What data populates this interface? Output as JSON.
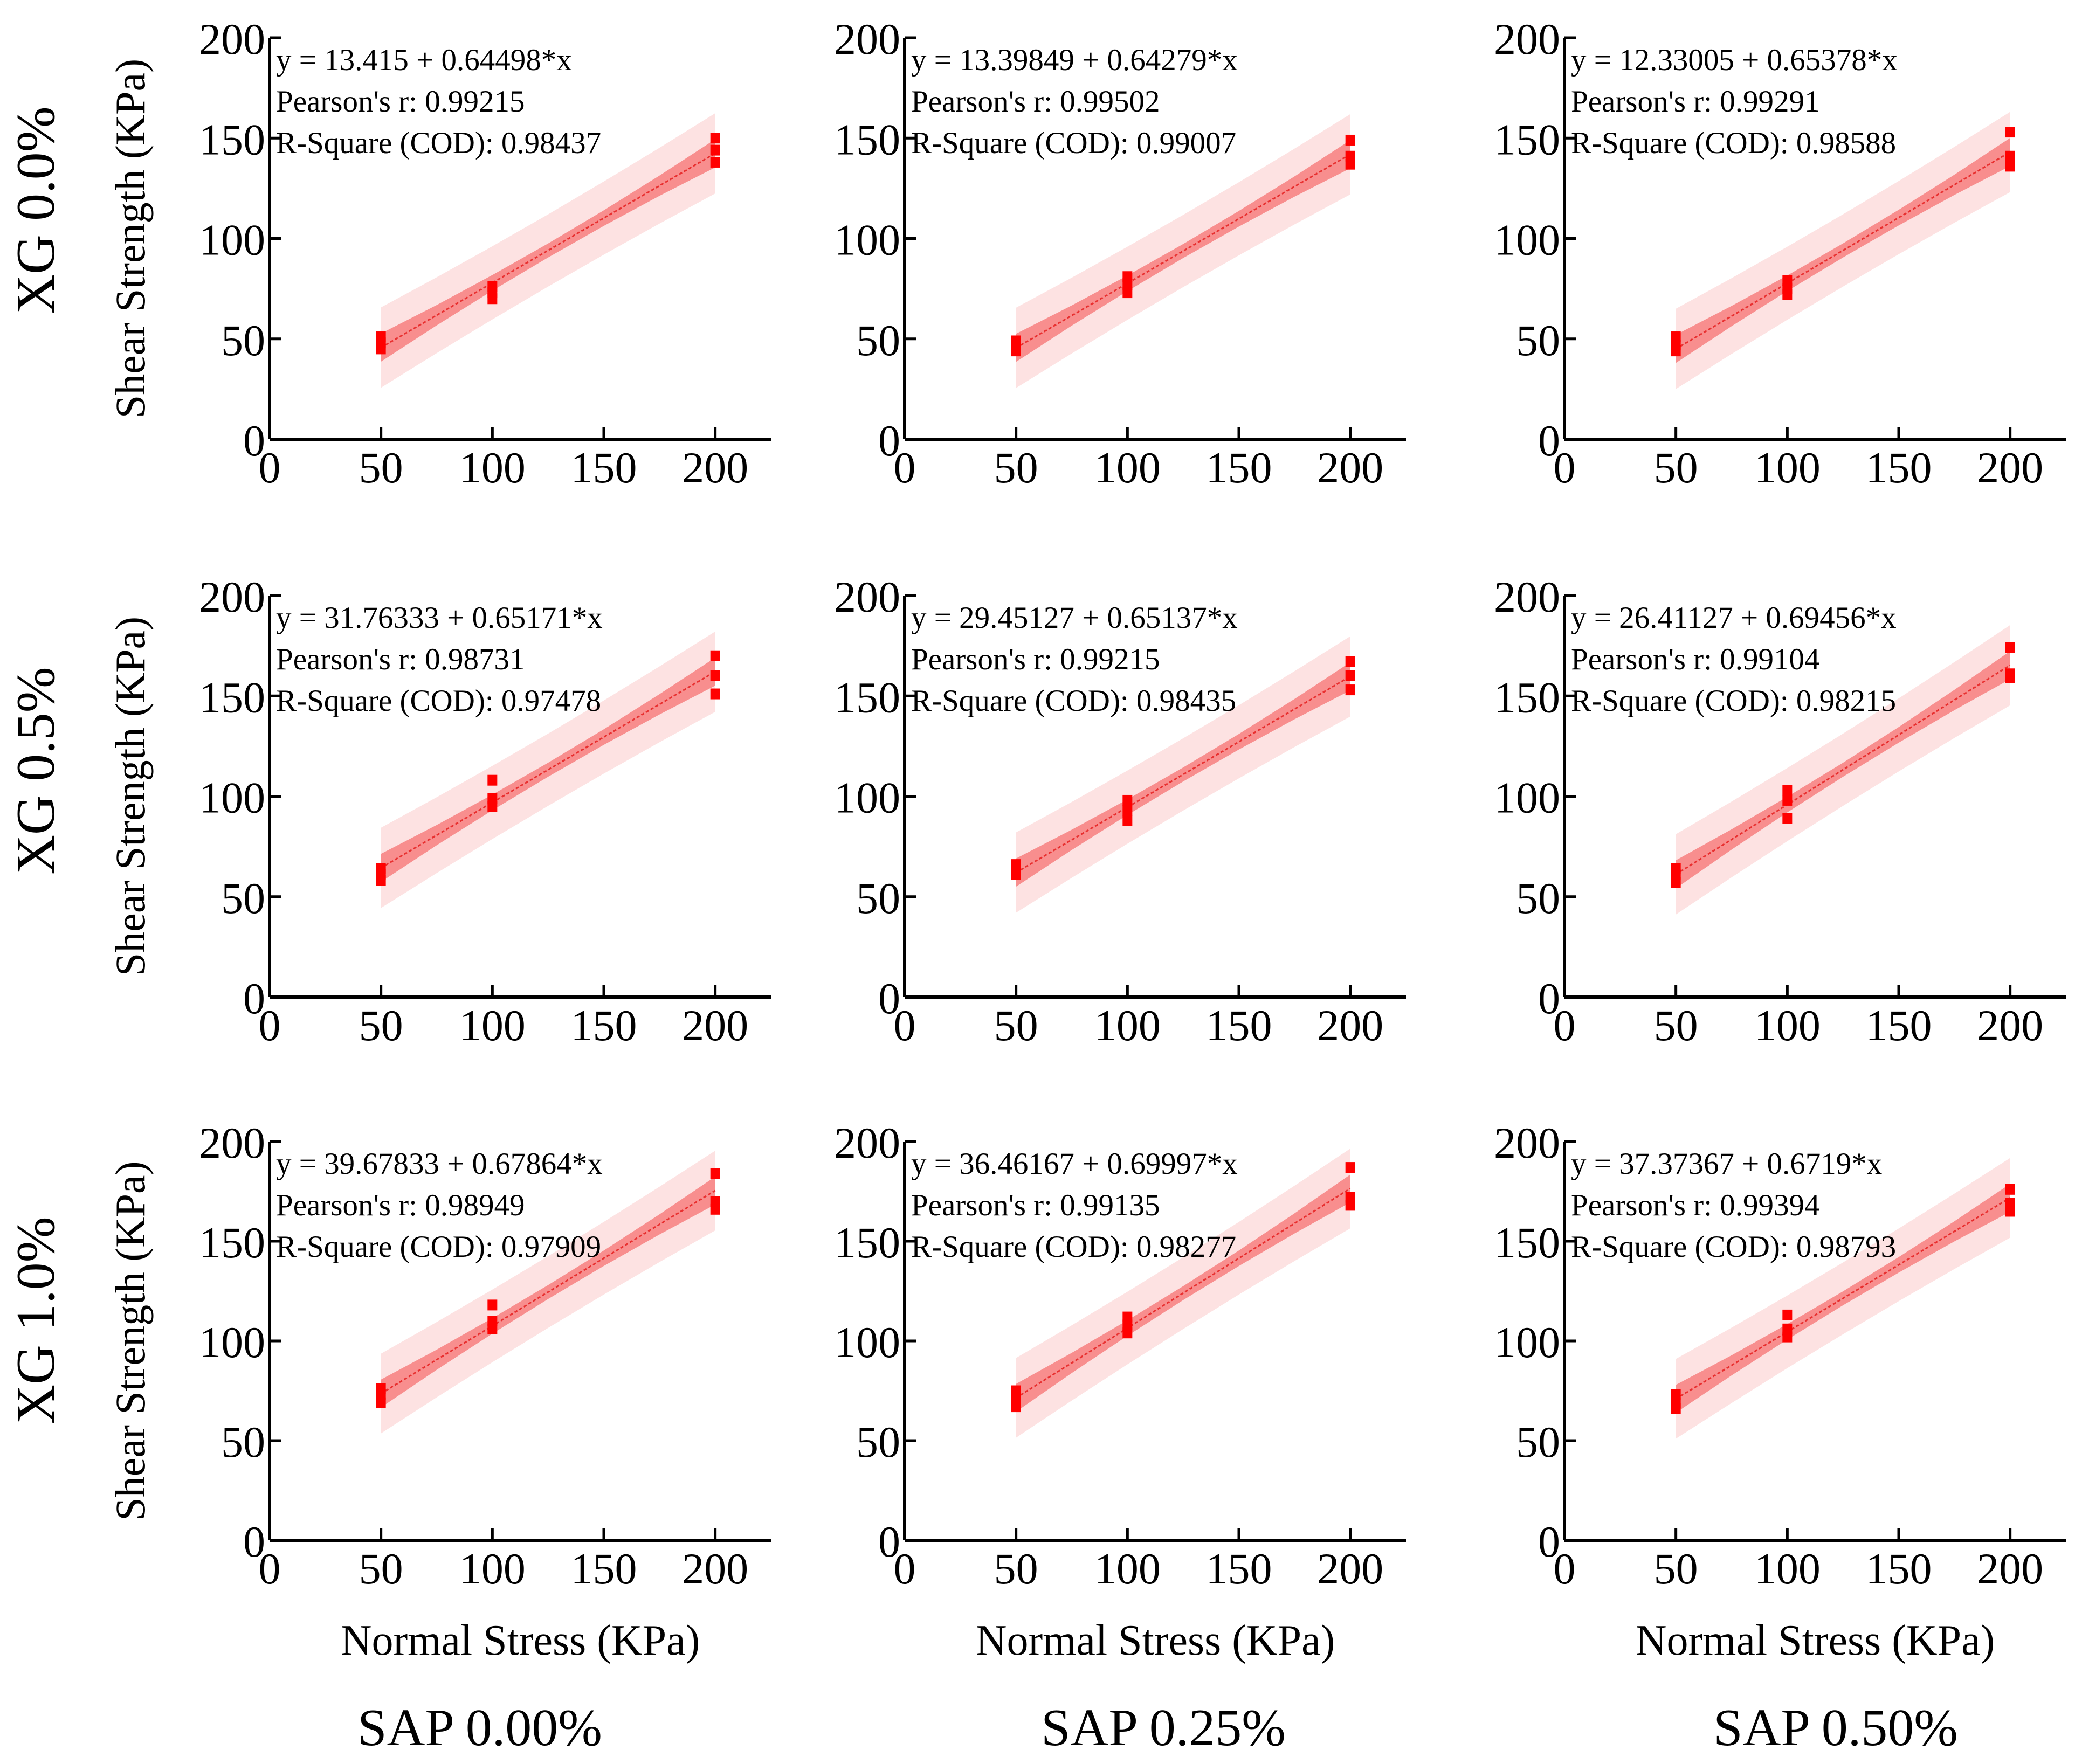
{
  "figure": {
    "y_axis_label": "Shear Strength  (KPa)",
    "x_axis_label": "Normal Stress   (KPa)",
    "row_labels": [
      "XG 0.0%",
      "XG 0.5%",
      "XG 1.0%"
    ],
    "col_labels": [
      "SAP 0.00%",
      "SAP 0.25%",
      "SAP 0.50%"
    ],
    "colors": {
      "point": "#ff0000",
      "fit": "#e83030",
      "confidence_band": "#f77f7f",
      "prediction_band": "#fde2e2",
      "axis": "#000000"
    }
  },
  "chart_data": [
    {
      "type": "scatter",
      "row_label": "XG 0.0%",
      "col_label": "SAP 0.00%",
      "equation": "y = 13.415 + 0.64498*x",
      "pearson": "Pearson's r: 0.99215",
      "r_square": "R-Square (COD): 0.98437",
      "intercept": 13.415,
      "slope": 0.64498,
      "xlim": [
        0,
        225
      ],
      "ylim": [
        0,
        200
      ],
      "xticks": [
        0,
        50,
        100,
        150,
        200
      ],
      "yticks": [
        0,
        50,
        100,
        150,
        200
      ],
      "points": [
        [
          50,
          45
        ],
        [
          50,
          48
        ],
        [
          50,
          51
        ],
        [
          100,
          70
        ],
        [
          100,
          73
        ],
        [
          100,
          76
        ],
        [
          200,
          138
        ],
        [
          200,
          144
        ],
        [
          200,
          150
        ]
      ]
    },
    {
      "type": "scatter",
      "row_label": "XG 0.0%",
      "col_label": "SAP 0.25%",
      "equation": "y = 13.39849 + 0.64279*x",
      "pearson": "Pearson's r: 0.99502",
      "r_square": "R-Square (COD): 0.99007",
      "intercept": 13.39849,
      "slope": 0.64279,
      "xlim": [
        0,
        225
      ],
      "ylim": [
        0,
        200
      ],
      "xticks": [
        0,
        50,
        100,
        150,
        200
      ],
      "yticks": [
        0,
        50,
        100,
        150,
        200
      ],
      "points": [
        [
          50,
          44
        ],
        [
          50,
          47
        ],
        [
          50,
          49
        ],
        [
          100,
          73
        ],
        [
          100,
          77
        ],
        [
          100,
          81
        ],
        [
          200,
          137
        ],
        [
          200,
          141
        ],
        [
          200,
          149
        ]
      ]
    },
    {
      "type": "scatter",
      "row_label": "XG 0.0%",
      "col_label": "SAP 0.50%",
      "equation": "y = 12.33005 + 0.65378*x",
      "pearson": "Pearson's r: 0.99291",
      "r_square": "R-Square (COD): 0.98588",
      "intercept": 12.33005,
      "slope": 0.65378,
      "xlim": [
        0,
        225
      ],
      "ylim": [
        0,
        200
      ],
      "xticks": [
        0,
        50,
        100,
        150,
        200
      ],
      "yticks": [
        0,
        50,
        100,
        150,
        200
      ],
      "points": [
        [
          50,
          44
        ],
        [
          50,
          47
        ],
        [
          50,
          51
        ],
        [
          100,
          72
        ],
        [
          100,
          75
        ],
        [
          100,
          79
        ],
        [
          200,
          136
        ],
        [
          200,
          141
        ],
        [
          200,
          153
        ]
      ]
    },
    {
      "type": "scatter",
      "row_label": "XG 0.5%",
      "col_label": "SAP 0.00%",
      "equation": "y = 31.76333 + 0.65171*x",
      "pearson": "Pearson's r: 0.98731",
      "r_square": "R-Square (COD): 0.97478",
      "intercept": 31.76333,
      "slope": 0.65171,
      "xlim": [
        0,
        225
      ],
      "ylim": [
        0,
        200
      ],
      "xticks": [
        0,
        50,
        100,
        150,
        200
      ],
      "yticks": [
        0,
        50,
        100,
        150,
        200
      ],
      "points": [
        [
          50,
          58
        ],
        [
          50,
          61
        ],
        [
          50,
          64
        ],
        [
          100,
          95
        ],
        [
          100,
          99
        ],
        [
          100,
          108
        ],
        [
          200,
          151
        ],
        [
          200,
          160
        ],
        [
          200,
          170
        ]
      ]
    },
    {
      "type": "scatter",
      "row_label": "XG 0.5%",
      "col_label": "SAP 0.25%",
      "equation": "y = 29.45127 + 0.65137*x",
      "pearson": "Pearson's r: 0.99215",
      "r_square": "R-Square (COD): 0.98435",
      "intercept": 29.45127,
      "slope": 0.65137,
      "xlim": [
        0,
        225
      ],
      "ylim": [
        0,
        200
      ],
      "xticks": [
        0,
        50,
        100,
        150,
        200
      ],
      "yticks": [
        0,
        50,
        100,
        150,
        200
      ],
      "points": [
        [
          50,
          61
        ],
        [
          50,
          63
        ],
        [
          50,
          66
        ],
        [
          100,
          88
        ],
        [
          100,
          93
        ],
        [
          100,
          98
        ],
        [
          200,
          153
        ],
        [
          200,
          160
        ],
        [
          200,
          167
        ]
      ]
    },
    {
      "type": "scatter",
      "row_label": "XG 0.5%",
      "col_label": "SAP 0.50%",
      "equation": "y = 26.41127 + 0.69456*x",
      "pearson": "Pearson's r: 0.99104",
      "r_square": "R-Square (COD): 0.98215",
      "intercept": 26.41127,
      "slope": 0.69456,
      "xlim": [
        0,
        225
      ],
      "ylim": [
        0,
        200
      ],
      "xticks": [
        0,
        50,
        100,
        150,
        200
      ],
      "yticks": [
        0,
        50,
        100,
        150,
        200
      ],
      "points": [
        [
          50,
          57
        ],
        [
          50,
          61
        ],
        [
          50,
          64
        ],
        [
          100,
          89
        ],
        [
          100,
          98
        ],
        [
          100,
          103
        ],
        [
          200,
          159
        ],
        [
          200,
          161
        ],
        [
          200,
          174
        ]
      ]
    },
    {
      "type": "scatter",
      "row_label": "XG 1.0%",
      "col_label": "SAP 0.00%",
      "equation": "y = 39.67833 + 0.67864*x",
      "pearson": "Pearson's r: 0.98949",
      "r_square": "R-Square (COD): 0.97909",
      "intercept": 39.67833,
      "slope": 0.67864,
      "xlim": [
        0,
        225
      ],
      "ylim": [
        0,
        200
      ],
      "xticks": [
        0,
        50,
        100,
        150,
        200
      ],
      "yticks": [
        0,
        50,
        100,
        150,
        200
      ],
      "points": [
        [
          50,
          69
        ],
        [
          50,
          73
        ],
        [
          50,
          76
        ],
        [
          100,
          106
        ],
        [
          100,
          110
        ],
        [
          100,
          118
        ],
        [
          200,
          166
        ],
        [
          200,
          170
        ],
        [
          200,
          184
        ]
      ]
    },
    {
      "type": "scatter",
      "row_label": "XG 1.0%",
      "col_label": "SAP 0.25%",
      "equation": "y = 36.46167 + 0.69997*x",
      "pearson": "Pearson's r: 0.99135",
      "r_square": "R-Square (COD): 0.98277",
      "intercept": 36.46167,
      "slope": 0.69997,
      "xlim": [
        0,
        225
      ],
      "ylim": [
        0,
        200
      ],
      "xticks": [
        0,
        50,
        100,
        150,
        200
      ],
      "yticks": [
        0,
        50,
        100,
        150,
        200
      ],
      "points": [
        [
          50,
          67
        ],
        [
          50,
          71
        ],
        [
          50,
          75
        ],
        [
          100,
          104
        ],
        [
          100,
          108
        ],
        [
          100,
          112
        ],
        [
          200,
          168
        ],
        [
          200,
          172
        ],
        [
          200,
          187
        ]
      ]
    },
    {
      "type": "scatter",
      "row_label": "XG 1.0%",
      "col_label": "SAP 0.50%",
      "equation": "y = 37.37367 + 0.6719*x",
      "pearson": "Pearson's r: 0.99394",
      "r_square": "R-Square (COD): 0.98793",
      "intercept": 37.37367,
      "slope": 0.6719,
      "xlim": [
        0,
        225
      ],
      "ylim": [
        0,
        200
      ],
      "xticks": [
        0,
        50,
        100,
        150,
        200
      ],
      "yticks": [
        0,
        50,
        100,
        150,
        200
      ],
      "points": [
        [
          50,
          66
        ],
        [
          50,
          69
        ],
        [
          50,
          73
        ],
        [
          100,
          102
        ],
        [
          100,
          106
        ],
        [
          100,
          113
        ],
        [
          200,
          165
        ],
        [
          200,
          169
        ],
        [
          200,
          176
        ]
      ]
    }
  ]
}
